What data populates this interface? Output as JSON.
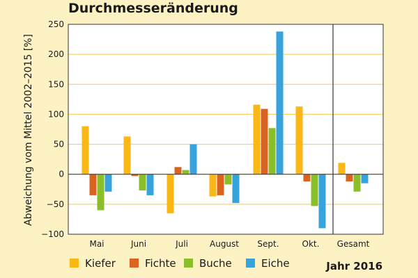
{
  "chart_data": {
    "type": "bar",
    "title": "Durchmesseränderung",
    "ylabel": "Abweichung vom Mittel 2002–2015 [%]",
    "xlabel": "",
    "categories": [
      "Mai",
      "Juni",
      "Juli",
      "August",
      "Sept.",
      "Okt.",
      "Gesamt"
    ],
    "series": [
      {
        "name": "Kiefer",
        "color": "#fbb715",
        "values": [
          80,
          63,
          -65,
          -37,
          116,
          113,
          19
        ]
      },
      {
        "name": "Fichte",
        "color": "#d9631f",
        "values": [
          -35,
          -3,
          12,
          -35,
          109,
          -12,
          -12
        ]
      },
      {
        "name": "Buche",
        "color": "#8bbf2a",
        "values": [
          -60,
          -27,
          7,
          -17,
          77,
          -53,
          -29
        ]
      },
      {
        "name": "Eiche",
        "color": "#36a3dc",
        "values": [
          -29,
          -35,
          50,
          -48,
          238,
          -90,
          -15
        ]
      }
    ],
    "ylim": [
      -100,
      250
    ],
    "yticks": [
      -100,
      -50,
      0,
      50,
      100,
      150,
      200,
      250
    ],
    "ytick_labels": [
      "−100",
      "−50",
      "0",
      "50",
      "100",
      "150",
      "200",
      "250"
    ],
    "grid": true,
    "separator_before_category": "Gesamt",
    "legend_position": "bottom",
    "annotation": "Jahr 2016",
    "background": "#fdf2c4",
    "plot_background": "#ffffff",
    "grid_color": "#f7c948"
  }
}
